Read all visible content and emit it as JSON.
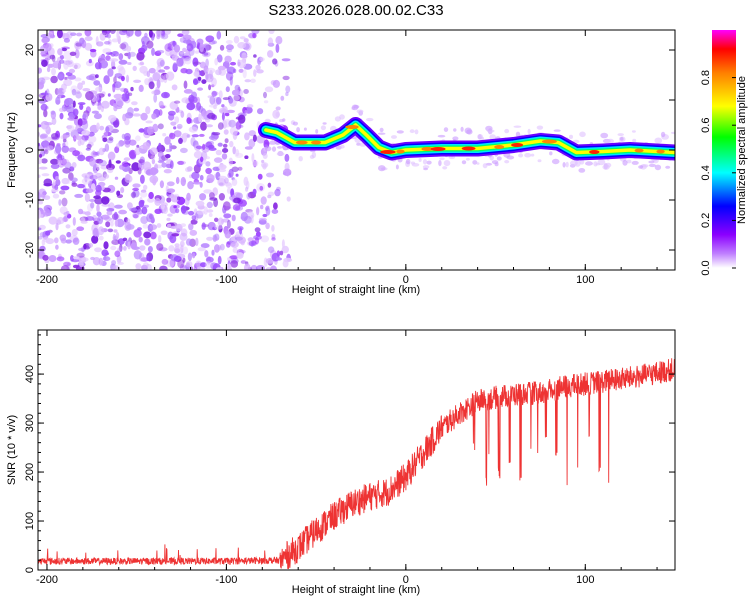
{
  "title": "S233.2026.028.00.02.C33",
  "chart_data": [
    {
      "type": "heatmap",
      "name": "spectrogram",
      "xlabel": "Height of straight line (km)",
      "ylabel": "Frequency (Hz)",
      "xlim": [
        -205,
        150
      ],
      "ylim": [
        -24,
        24
      ],
      "x_ticks": [
        -200,
        -100,
        0,
        100
      ],
      "y_ticks": [
        -20,
        -10,
        0,
        10,
        20
      ],
      "noise_region_x": [
        -205,
        -65
      ],
      "signal_track": [
        {
          "x": -78,
          "freq": 4.0
        },
        {
          "x": -72,
          "freq": 3.5
        },
        {
          "x": -62,
          "freq": 1.5
        },
        {
          "x": -45,
          "freq": 1.5
        },
        {
          "x": -35,
          "freq": 3.0
        },
        {
          "x": -28,
          "freq": 5.0
        },
        {
          "x": -22,
          "freq": 3.0
        },
        {
          "x": -15,
          "freq": 0.5
        },
        {
          "x": -8,
          "freq": -0.5
        },
        {
          "x": 0,
          "freq": 0.0
        },
        {
          "x": 20,
          "freq": 0.3
        },
        {
          "x": 40,
          "freq": 0.3
        },
        {
          "x": 60,
          "freq": 1.0
        },
        {
          "x": 75,
          "freq": 1.8
        },
        {
          "x": 85,
          "freq": 1.5
        },
        {
          "x": 95,
          "freq": -0.5
        },
        {
          "x": 110,
          "freq": -0.3
        },
        {
          "x": 125,
          "freq": 0.0
        },
        {
          "x": 150,
          "freq": -0.5
        }
      ],
      "colorbar": {
        "label": "Normalized spectral amplitude",
        "range": [
          0,
          1
        ],
        "ticks": [
          "0.0",
          "0.2",
          "0.4",
          "0.6",
          "0.8"
        ],
        "colors": [
          "#ffffff",
          "#8b00ff",
          "#0000ff",
          "#00ffff",
          "#00ff00",
          "#ffff00",
          "#ff0000",
          "#ff00ff"
        ]
      }
    },
    {
      "type": "line",
      "name": "snr",
      "xlabel": "Height of straight line (km)",
      "ylabel": "SNR (10 * v/v)",
      "xlim": [
        -205,
        150
      ],
      "ylim": [
        0,
        490
      ],
      "x_ticks": [
        -200,
        -100,
        0,
        100
      ],
      "y_ticks": [
        0,
        100,
        200,
        300,
        400
      ],
      "color": "#ee3333",
      "trend": [
        {
          "x": -205,
          "y": 18
        },
        {
          "x": -100,
          "y": 18
        },
        {
          "x": -70,
          "y": 20
        },
        {
          "x": -60,
          "y": 45
        },
        {
          "x": -50,
          "y": 80
        },
        {
          "x": -40,
          "y": 110
        },
        {
          "x": -30,
          "y": 135
        },
        {
          "x": -20,
          "y": 150
        },
        {
          "x": -10,
          "y": 160
        },
        {
          "x": 0,
          "y": 190
        },
        {
          "x": 10,
          "y": 240
        },
        {
          "x": 20,
          "y": 290
        },
        {
          "x": 30,
          "y": 320
        },
        {
          "x": 40,
          "y": 345
        },
        {
          "x": 50,
          "y": 352
        },
        {
          "x": 60,
          "y": 358
        },
        {
          "x": 75,
          "y": 362
        },
        {
          "x": 90,
          "y": 375
        },
        {
          "x": 110,
          "y": 385
        },
        {
          "x": 130,
          "y": 395
        },
        {
          "x": 150,
          "y": 410
        }
      ],
      "dropouts": [
        {
          "x": 38,
          "y": 230
        },
        {
          "x": 45,
          "y": 170
        },
        {
          "x": 52,
          "y": 185
        },
        {
          "x": 58,
          "y": 210
        },
        {
          "x": 64,
          "y": 175
        },
        {
          "x": 70,
          "y": 220
        },
        {
          "x": 78,
          "y": 265
        },
        {
          "x": 84,
          "y": 230
        },
        {
          "x": 90,
          "y": 160
        },
        {
          "x": 96,
          "y": 185
        },
        {
          "x": 102,
          "y": 250
        },
        {
          "x": 108,
          "y": 190
        },
        {
          "x": 113,
          "y": 175
        }
      ]
    }
  ]
}
